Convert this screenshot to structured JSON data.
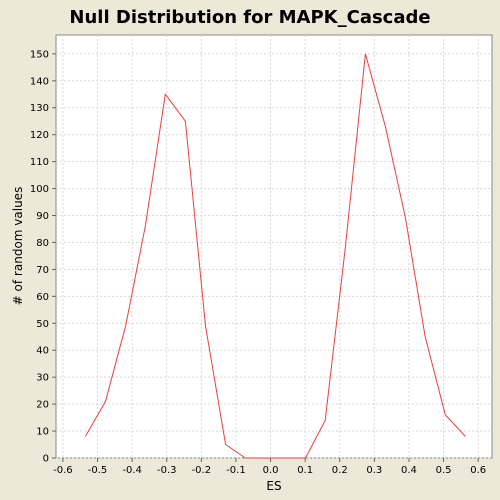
{
  "chart_data": {
    "type": "line",
    "title": "Null Distribution for MAPK_Cascade",
    "xlabel": "ES",
    "ylabel": "# of random values",
    "xlim": [
      -0.62,
      0.64
    ],
    "ylim": [
      0,
      157
    ],
    "xticks": [
      -0.6,
      -0.5,
      -0.4,
      -0.3,
      -0.2,
      -0.1,
      0.0,
      0.1,
      0.2,
      0.3,
      0.4,
      0.5,
      0.6
    ],
    "xtick_labels": [
      "-0.6",
      "-0.5",
      "-0.4",
      "-0.3",
      "-0.2",
      "-0.1",
      "0.0",
      "0.1",
      "0.2",
      "0.3",
      "0.4",
      "0.5",
      "0.6"
    ],
    "yticks": [
      0,
      10,
      20,
      30,
      40,
      50,
      60,
      70,
      80,
      90,
      100,
      110,
      120,
      130,
      140,
      150
    ],
    "ytick_labels": [
      "0",
      "10",
      "20",
      "30",
      "40",
      "50",
      "60",
      "70",
      "80",
      "90",
      "100",
      "110",
      "120",
      "130",
      "140",
      "150"
    ],
    "grid": true,
    "series": [
      {
        "color": "#e8413b",
        "x": [
          -0.535,
          -0.477,
          -0.419,
          -0.362,
          -0.304,
          -0.246,
          -0.188,
          -0.13,
          -0.073,
          -0.015,
          0.043,
          0.101,
          0.158,
          0.216,
          0.274,
          0.332,
          0.39,
          0.447,
          0.505,
          0.563
        ],
        "y": [
          8,
          21,
          49,
          86,
          135,
          125,
          49,
          5,
          0,
          0,
          0,
          0,
          14,
          78,
          150,
          123,
          89,
          45,
          16,
          8
        ]
      }
    ]
  }
}
